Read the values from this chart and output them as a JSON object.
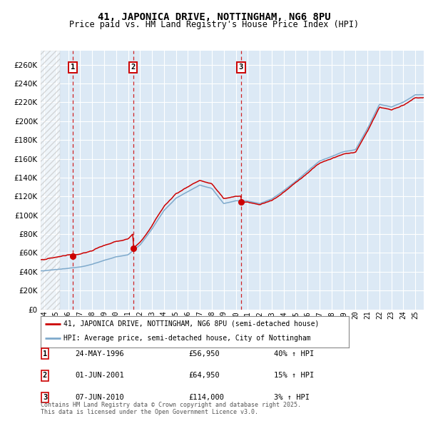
{
  "title": "41, JAPONICA DRIVE, NOTTINGHAM, NG6 8PU",
  "subtitle": "Price paid vs. HM Land Registry's House Price Index (HPI)",
  "ylabel_ticks": [
    0,
    20000,
    40000,
    60000,
    80000,
    100000,
    120000,
    140000,
    160000,
    180000,
    200000,
    220000,
    240000,
    260000
  ],
  "ylim": [
    0,
    275000
  ],
  "xlim_start": 1993.7,
  "xlim_end": 2025.7,
  "background_color": "#ffffff",
  "plot_bg_color": "#dce9f5",
  "hatch_region_end": 1995.3,
  "grid_color": "#ffffff",
  "sale_dates": [
    1996.39,
    2001.42,
    2010.44
  ],
  "sale_prices": [
    56950,
    64950,
    114000
  ],
  "sale_labels": [
    "1",
    "2",
    "3"
  ],
  "sale_date_strings": [
    "24-MAY-1996",
    "01-JUN-2001",
    "07-JUN-2010"
  ],
  "sale_price_strings": [
    "£56,950",
    "£64,950",
    "£114,000"
  ],
  "sale_hpi_strings": [
    "40% ↑ HPI",
    "15% ↑ HPI",
    "3% ↑ HPI"
  ],
  "legend_line1": "41, JAPONICA DRIVE, NOTTINGHAM, NG6 8PU (semi-detached house)",
  "legend_line2": "HPI: Average price, semi-detached house, City of Nottingham",
  "footer": "Contains HM Land Registry data © Crown copyright and database right 2025.\nThis data is licensed under the Open Government Licence v3.0.",
  "red_line_color": "#cc0000",
  "blue_line_color": "#7faacc",
  "marker_color": "#cc0000",
  "vline_color": "#cc0000",
  "box_color": "#cc0000",
  "hpi_base_points_years": [
    1994,
    1995,
    1996,
    1997,
    1998,
    1999,
    2000,
    2001,
    2002,
    2003,
    2004,
    2005,
    2006,
    2007,
    2008,
    2009,
    2010,
    2011,
    2012,
    2013,
    2014,
    2015,
    2016,
    2017,
    2018,
    2019,
    2020,
    2021,
    2022,
    2023,
    2024,
    2025
  ],
  "hpi_base_points_vals": [
    41000,
    42000,
    43000,
    45000,
    48000,
    52000,
    56000,
    58000,
    68000,
    85000,
    105000,
    118000,
    125000,
    132000,
    128000,
    112000,
    115000,
    115000,
    112000,
    117000,
    126000,
    136000,
    147000,
    158000,
    163000,
    168000,
    170000,
    192000,
    218000,
    215000,
    220000,
    228000
  ]
}
